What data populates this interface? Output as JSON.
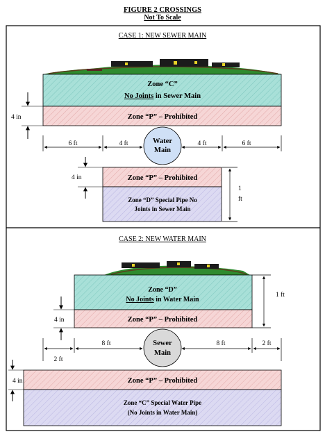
{
  "header": {
    "title": "FIGURE 2   CROSSINGS",
    "subtitle": "Not To Scale"
  },
  "colors": {
    "zone_c_fill": "#a8e0d8",
    "zone_p_fill": "#f6d6d6",
    "zone_d_fill": "#dcdaf2",
    "pipe_water": "#cfe0f6",
    "pipe_sewer": "#d9d9d9",
    "ground_green": "#2f8b2f"
  },
  "case1": {
    "heading": "CASE 1:    NEW SEWER MAIN",
    "zone_c": {
      "title": "Zone “C”",
      "line1": "No Joints",
      "line2": " in Sewer Main"
    },
    "zone_p_top": {
      "label": "Zone “P” – Prohibited"
    },
    "pipe": {
      "line1": "Water",
      "line2": "Main"
    },
    "dims": {
      "d1": "6 ft",
      "d2": "4 ft",
      "d3": "4 ft",
      "d4": "6 ft",
      "side_top": "4 in",
      "side_bottom": "4 in",
      "right_1": "1",
      "right_2": "ft"
    },
    "zone_p_bottom": {
      "label": "Zone “P” – Prohibited"
    },
    "zone_d": {
      "line1": "Zone “D” Special Pipe  No",
      "line2": "Joints in Sewer Main"
    }
  },
  "case2": {
    "heading": "CASE 2:    NEW WATER MAIN",
    "zone_d": {
      "title": "Zone “D”",
      "line1": "No Joints",
      "line2": "  in Water Main"
    },
    "zone_p_top": {
      "label": "Zone “P” – Prohibited"
    },
    "pipe": {
      "line1": "Sewer",
      "line2": "Main"
    },
    "dims": {
      "right_top": "1 ft",
      "side_top": "4 in",
      "left": "8 ft",
      "right": "8 ft",
      "far_right": "2 ft",
      "far_left": "2  ft",
      "side_bottom": "4 in"
    },
    "zone_p_bottom": {
      "label": "Zone “P” – Prohibited"
    },
    "zone_c": {
      "line1": "Zone “C”   Special Water Pipe",
      "line2": "(No Joints in Water Main)"
    }
  }
}
